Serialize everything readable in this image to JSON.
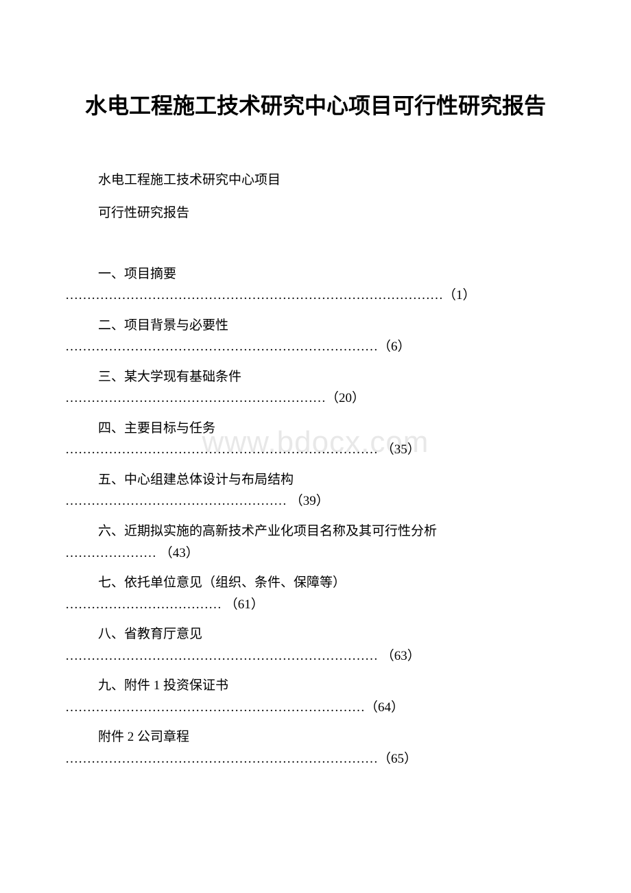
{
  "title": "水电工程施工技术研究中心项目可行性研究报告",
  "subtitle1": "水电工程施工技术研究中心项目",
  "subtitle2": "可行性研究报告",
  "watermark": "www.bdocx.com",
  "toc": [
    {
      "label": "一、项目摘要",
      "dots": "……………………………………………………………………………（1）"
    },
    {
      "label": "二、项目背景与必要性",
      "dots": "………………………………………………………………（6）"
    },
    {
      "label": "三、某大学现有基础条件",
      "dots": "……………………………………………………（20）"
    },
    {
      "label": "四、主要目标与任务",
      "dots": "……………………………………………………………… （35）"
    },
    {
      "label": "五、中心组建总体设计与布局结构",
      "dots": "…………………………………………… （39）"
    },
    {
      "label": "六、近期拟实施的高新技术产业化项目名称及其可行性分析",
      "dots": "………………… （43）"
    },
    {
      "label": "七、依托单位意见（组织、条件、保障等）",
      "dots": "……………………………… （61）"
    },
    {
      "label": "八、省教育厅意见",
      "dots": "……………………………………………………………… （63）"
    },
    {
      "label": "九、附件 1 投资保证书",
      "dots": "……………………………………………………………（64）"
    },
    {
      "label": "  附件 2 公司章程",
      "dots": "………………………………………………………………（65）"
    }
  ]
}
